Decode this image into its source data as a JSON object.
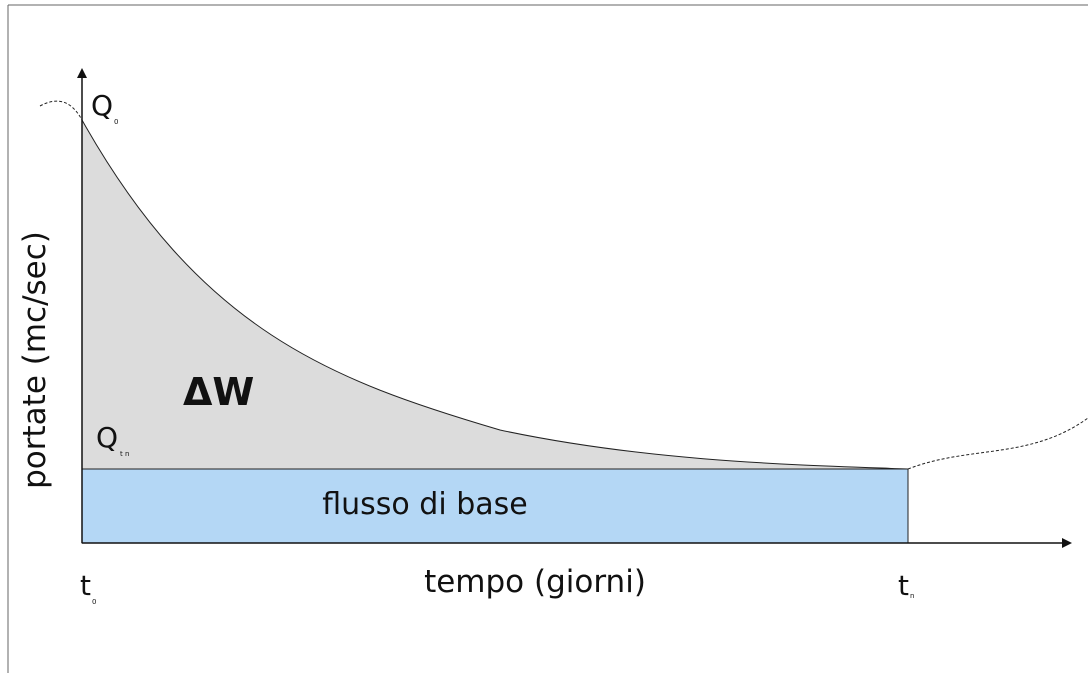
{
  "diagram": {
    "y_axis_label": "portate (mc/sec)",
    "x_axis_label": "tempo (giorni)",
    "q_start": {
      "symbol": "Q",
      "sub": "0"
    },
    "q_end": {
      "symbol": "Q",
      "sub": "t n"
    },
    "t_start": {
      "symbol": "t",
      "sub": "0"
    },
    "t_end": {
      "symbol": "t",
      "sub": "n"
    },
    "area_label": "ΔW",
    "base_label": "flusso di base"
  }
}
